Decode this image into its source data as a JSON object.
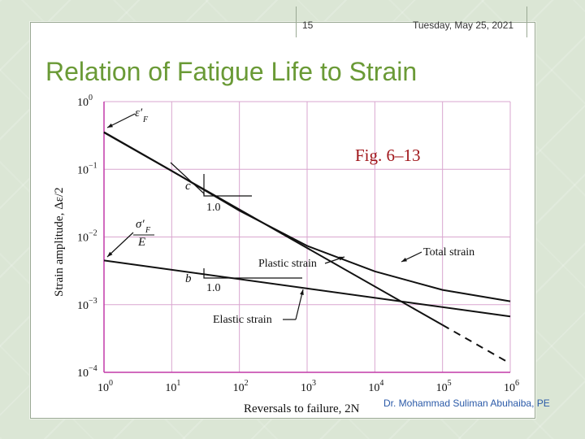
{
  "slide": {
    "number": "15",
    "date": "Tuesday, May 25, 2021",
    "title": "Relation of Fatigue Life to Strain",
    "footer": "Dr. Mohammad Suliman Abuhaiba, PE"
  },
  "colors": {
    "title": "#6a9a36",
    "grid": "#d9a6cf",
    "curve": "#111111",
    "footer": "#2b5aa8",
    "fig_label": "#a0161a"
  },
  "chart_data": {
    "type": "line",
    "x_scale": "log",
    "y_scale": "log",
    "xlim": [
      1,
      1000000
    ],
    "ylim": [
      0.0001,
      1
    ],
    "xlabel": "Reversals to failure, 2N",
    "ylabel": "Strain amplitude, Δε/2",
    "grid": true,
    "x_ticks": [
      {
        "base": "10",
        "exp": "0"
      },
      {
        "base": "10",
        "exp": "1"
      },
      {
        "base": "10",
        "exp": "2"
      },
      {
        "base": "10",
        "exp": "3"
      },
      {
        "base": "10",
        "exp": "4"
      },
      {
        "base": "10",
        "exp": "5"
      },
      {
        "base": "10",
        "exp": "6"
      }
    ],
    "y_ticks": [
      {
        "base": "10",
        "exp": "0"
      },
      {
        "base": "10",
        "exp": "−1"
      },
      {
        "base": "10",
        "exp": "−2"
      },
      {
        "base": "10",
        "exp": "−3"
      },
      {
        "base": "10",
        "exp": "−4"
      }
    ],
    "series": [
      {
        "id": "plastic",
        "x": [
          1,
          1000000
        ],
        "y": [
          0.35,
          0.000135
        ],
        "dashed_from_x": 100000
      },
      {
        "id": "elastic",
        "x": [
          1,
          1000000
        ],
        "y": [
          0.0045,
          0.00067
        ]
      },
      {
        "id": "total",
        "x": [
          1,
          10,
          100,
          1000,
          10000,
          100000,
          1000000
        ],
        "y": [
          0.355,
          0.095,
          0.0245,
          0.0074,
          0.0031,
          0.00165,
          0.00112
        ]
      }
    ],
    "annotations": {
      "fig": "Fig. 6–13",
      "eps_f": "ε′",
      "eps_f_sub": "F",
      "sigma_f": "σ′",
      "sigma_f_sub": "F",
      "E": "E",
      "c": "c",
      "b": "b",
      "slope_c": "1.0",
      "slope_b": "1.0",
      "plastic": "Plastic strain",
      "elastic": "Elastic strain",
      "total": "Total strain"
    }
  }
}
